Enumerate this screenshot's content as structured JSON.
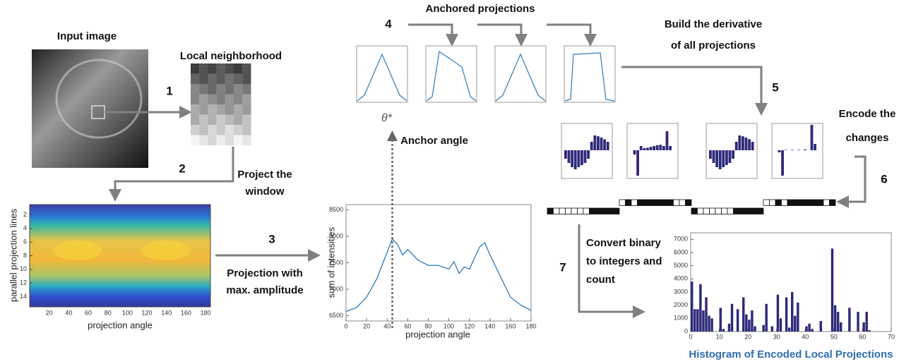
{
  "labels": {
    "input_image": "Input image",
    "local_neighborhood": "Local neighborhood",
    "project_window": [
      "Project the",
      "window"
    ],
    "projection_max": [
      "Projection with",
      "max. amplitude"
    ],
    "anchor_angle": "Anchor angle",
    "anchored_projections": "Anchored projections",
    "build_derivative": [
      "Build the derivative",
      "of all projections"
    ],
    "encode_changes": [
      "Encode the",
      "changes"
    ],
    "convert": [
      "Convert binary",
      "to integers and",
      "count"
    ]
  },
  "steps": [
    "1",
    "2",
    "3",
    "4",
    "5",
    "6",
    "7"
  ],
  "heatmap": {
    "ylabel": "parallel projection lines",
    "xlabel": "projection angle",
    "ylim": [
      0.5,
      15.5
    ],
    "yticks": [
      2,
      4,
      6,
      8,
      10,
      12,
      14
    ],
    "xlim": [
      0,
      185
    ],
    "xticks": [
      20,
      40,
      60,
      80,
      100,
      120,
      140,
      160,
      180
    ]
  },
  "projection_chart": {
    "type": "line",
    "ylabel": "sum of intensities",
    "xlabel": "projection angle",
    "anchor_label": "θ*",
    "anchor_x": 45,
    "color": "#2b7bba",
    "x": [
      0,
      10,
      20,
      30,
      40,
      45,
      50,
      55,
      60,
      70,
      80,
      90,
      100,
      105,
      110,
      115,
      120,
      130,
      135,
      140,
      150,
      160,
      170,
      180
    ],
    "values": [
      6580,
      6650,
      6850,
      7200,
      7700,
      7950,
      7850,
      7650,
      7750,
      7550,
      7450,
      7450,
      7380,
      7520,
      7300,
      7420,
      7380,
      7800,
      7880,
      7650,
      7250,
      6850,
      6700,
      6600
    ],
    "xlim": [
      0,
      180
    ],
    "ylim": [
      6400,
      8600
    ],
    "xticks": [
      0,
      20,
      40,
      60,
      80,
      100,
      120,
      140,
      160,
      180
    ],
    "yticks": [
      6500,
      7000,
      7500,
      8000,
      8500
    ]
  },
  "histogram": {
    "type": "bar",
    "title": "Histogram of Encoded Local Projections",
    "color": "#2e2a7a",
    "x": [
      0,
      1,
      2,
      3,
      4,
      5,
      6,
      7,
      8,
      9,
      10,
      11,
      12,
      13,
      14,
      15,
      16,
      17,
      18,
      19,
      20,
      21,
      22,
      23,
      24,
      25,
      26,
      27,
      28,
      29,
      30,
      31,
      32,
      33,
      34,
      35,
      36,
      37,
      38,
      39,
      40,
      41,
      42,
      43,
      44,
      45,
      46,
      47,
      48,
      49,
      50,
      51,
      52,
      53,
      54,
      55,
      56,
      57,
      58,
      59,
      60,
      61,
      62,
      63
    ],
    "values": [
      3800,
      1700,
      1700,
      3600,
      1600,
      2600,
      1200,
      1000,
      0,
      0,
      1800,
      200,
      0,
      600,
      2100,
      0,
      1700,
      0,
      2600,
      1300,
      900,
      1600,
      400,
      0,
      0,
      500,
      2100,
      0,
      400,
      0,
      2800,
      1000,
      0,
      2600,
      300,
      3000,
      1200,
      2200,
      0,
      0,
      400,
      600,
      200,
      0,
      0,
      800,
      0,
      0,
      0,
      6300,
      2000,
      1500,
      700,
      0,
      0,
      1800,
      0,
      0,
      1500,
      0,
      700,
      1500,
      100,
      0
    ],
    "xlim": [
      0,
      70
    ],
    "ylim": [
      0,
      7500
    ],
    "xticks": [
      0,
      10,
      20,
      30,
      40,
      50,
      60,
      70
    ],
    "yticks": [
      0,
      1000,
      2000,
      3000,
      4000,
      5000,
      6000,
      7000
    ]
  }
}
